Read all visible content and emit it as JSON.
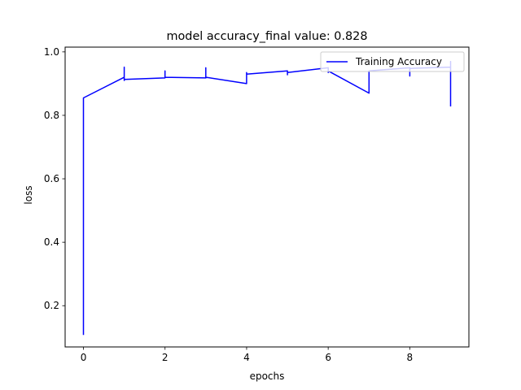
{
  "chart_data": {
    "type": "line",
    "title": "model accuracy_final value: 0.828",
    "xlabel": "epochs",
    "ylabel": "loss",
    "xlim": [
      -0.45,
      9.45
    ],
    "ylim": [
      0.07,
      1.015
    ],
    "xticks": [
      0,
      2,
      4,
      6,
      8
    ],
    "xtick_labels": [
      "0",
      "2",
      "4",
      "6",
      "8"
    ],
    "yticks": [
      0.2,
      0.4,
      0.6,
      0.8,
      1.0
    ],
    "ytick_labels": [
      "0.2",
      "0.4",
      "0.6",
      "0.8",
      "1.0"
    ],
    "grid": false,
    "legend": {
      "loc": "upper right",
      "entries": [
        "Training Accuracy"
      ]
    },
    "series": [
      {
        "name": "Training Accuracy",
        "color": "#0000ff",
        "x": [
          0,
          0,
          0,
          1,
          1,
          1,
          1,
          1,
          2,
          2,
          2,
          2,
          3,
          3,
          3,
          3,
          4,
          4,
          4,
          4,
          5,
          5,
          5,
          6,
          6,
          6,
          7,
          7,
          7,
          8,
          8,
          8,
          8,
          9,
          9,
          9
        ],
        "y": [
          0.108,
          0.85,
          0.855,
          0.92,
          0.952,
          0.91,
          0.935,
          0.913,
          0.918,
          0.94,
          0.928,
          0.92,
          0.918,
          0.95,
          0.924,
          0.92,
          0.9,
          0.935,
          0.92,
          0.93,
          0.94,
          0.928,
          0.935,
          0.95,
          0.935,
          0.94,
          0.87,
          0.935,
          0.94,
          0.95,
          0.924,
          0.935,
          0.948,
          0.952,
          0.97,
          0.828
        ]
      }
    ]
  }
}
